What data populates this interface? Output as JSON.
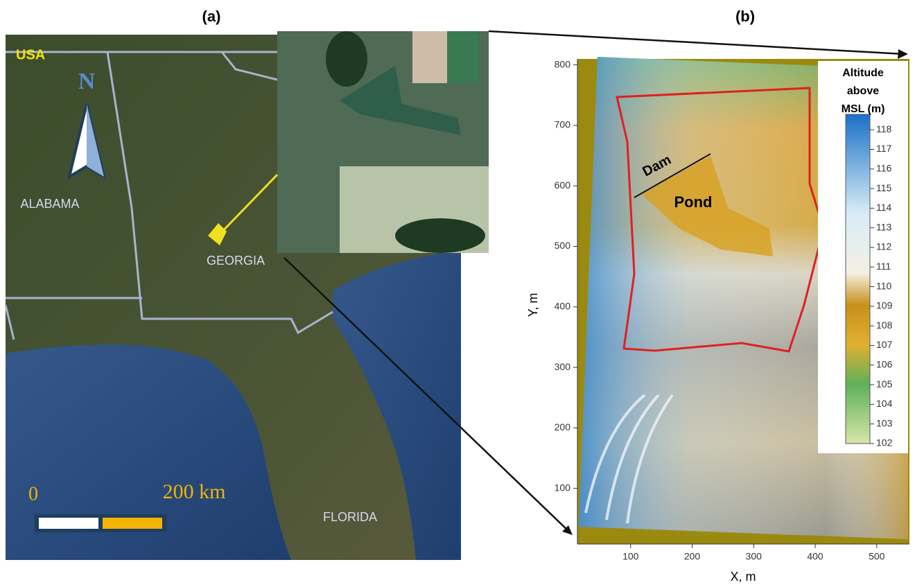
{
  "panel_a": {
    "label": "(a)",
    "country": "USA",
    "north": "N",
    "states": [
      "ALABAMA",
      "GEORGIA",
      "FLORIDA"
    ],
    "scale_start": "0",
    "scale_end": "200 km"
  },
  "panel_b": {
    "label": "(b)",
    "annotations": [
      "Dam",
      "Pond"
    ],
    "x_axis": {
      "title": "X, m",
      "ticks": [
        100,
        200,
        300,
        400,
        500
      ]
    },
    "y_axis": {
      "title": "Y, m",
      "ticks": [
        100,
        200,
        300,
        400,
        500,
        600,
        700,
        800
      ]
    },
    "colorbar": {
      "title_lines": [
        "Altitude",
        "above",
        "MSL (m)"
      ],
      "ticks": [
        102,
        103,
        104,
        105,
        106,
        107,
        108,
        109,
        110,
        111,
        112,
        113,
        114,
        115,
        116,
        117,
        118
      ]
    }
  }
}
